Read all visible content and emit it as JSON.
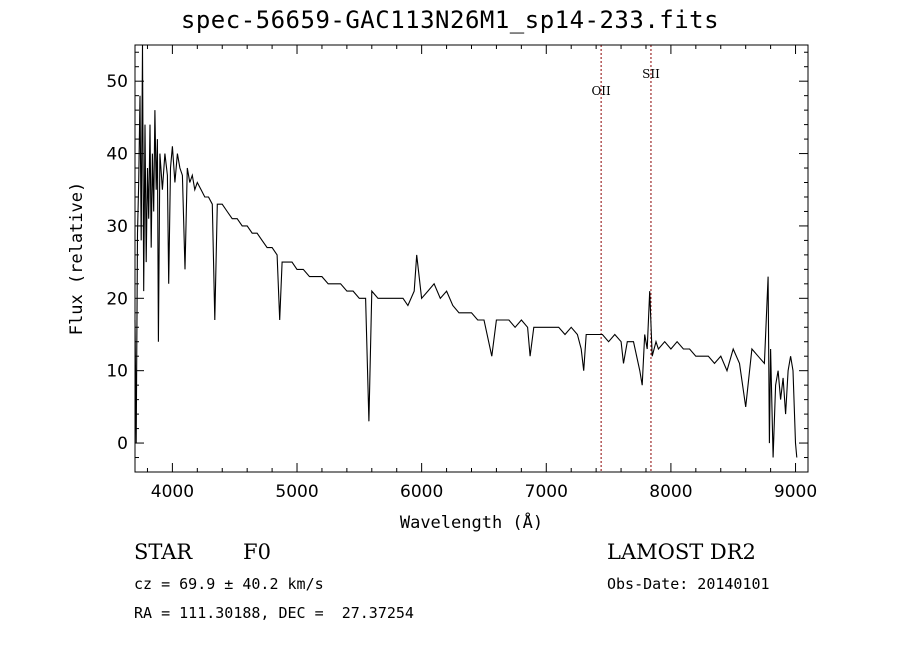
{
  "chart_data": {
    "type": "line",
    "title": "spec-56659-GAC113N26M1_sp14-233.fits",
    "xlabel": "Wavelength (Å)",
    "ylabel": "Flux (relative)",
    "xlim": [
      3700,
      9100
    ],
    "ylim": [
      -4,
      55
    ],
    "xticks": [
      4000,
      5000,
      6000,
      7000,
      8000,
      9000
    ],
    "yticks": [
      0,
      10,
      20,
      30,
      40,
      50
    ],
    "grid": false,
    "line_color": "#000000",
    "marker_color": "#8b0000",
    "reference_lines": [
      {
        "label": "OII",
        "x": 7440
      },
      {
        "label": "SII",
        "x": 7840
      }
    ],
    "series": [
      {
        "values": [
          [
            3700,
            17
          ],
          [
            3710,
            0
          ],
          [
            3720,
            29
          ],
          [
            3730,
            36
          ],
          [
            3740,
            48
          ],
          [
            3750,
            28
          ],
          [
            3760,
            56
          ],
          [
            3770,
            21
          ],
          [
            3780,
            44
          ],
          [
            3790,
            25
          ],
          [
            3800,
            38
          ],
          [
            3810,
            31
          ],
          [
            3820,
            44
          ],
          [
            3830,
            27
          ],
          [
            3840,
            40
          ],
          [
            3850,
            32
          ],
          [
            3860,
            46
          ],
          [
            3870,
            35
          ],
          [
            3880,
            42
          ],
          [
            3888,
            14
          ],
          [
            3900,
            40
          ],
          [
            3920,
            35
          ],
          [
            3940,
            40
          ],
          [
            3960,
            37
          ],
          [
            3970,
            22
          ],
          [
            3985,
            38
          ],
          [
            4000,
            41
          ],
          [
            4020,
            36
          ],
          [
            4040,
            40
          ],
          [
            4060,
            38
          ],
          [
            4080,
            37
          ],
          [
            4101,
            24
          ],
          [
            4120,
            38
          ],
          [
            4140,
            36
          ],
          [
            4160,
            37
          ],
          [
            4180,
            35
          ],
          [
            4200,
            36
          ],
          [
            4230,
            35
          ],
          [
            4260,
            34
          ],
          [
            4290,
            34
          ],
          [
            4320,
            33
          ],
          [
            4340,
            17
          ],
          [
            4360,
            33
          ],
          [
            4400,
            33
          ],
          [
            4440,
            32
          ],
          [
            4480,
            31
          ],
          [
            4520,
            31
          ],
          [
            4560,
            30
          ],
          [
            4600,
            30
          ],
          [
            4640,
            29
          ],
          [
            4680,
            29
          ],
          [
            4720,
            28
          ],
          [
            4760,
            27
          ],
          [
            4800,
            27
          ],
          [
            4840,
            26
          ],
          [
            4861,
            17
          ],
          [
            4880,
            25
          ],
          [
            4920,
            25
          ],
          [
            4960,
            25
          ],
          [
            5000,
            24
          ],
          [
            5050,
            24
          ],
          [
            5100,
            23
          ],
          [
            5150,
            23
          ],
          [
            5200,
            23
          ],
          [
            5250,
            22
          ],
          [
            5300,
            22
          ],
          [
            5350,
            22
          ],
          [
            5400,
            21
          ],
          [
            5450,
            21
          ],
          [
            5500,
            20
          ],
          [
            5550,
            20
          ],
          [
            5577,
            3
          ],
          [
            5600,
            21
          ],
          [
            5650,
            20
          ],
          [
            5700,
            20
          ],
          [
            5750,
            20
          ],
          [
            5800,
            20
          ],
          [
            5850,
            20
          ],
          [
            5890,
            19
          ],
          [
            5940,
            21
          ],
          [
            5960,
            26
          ],
          [
            6000,
            20
          ],
          [
            6050,
            21
          ],
          [
            6100,
            22
          ],
          [
            6150,
            20
          ],
          [
            6200,
            21
          ],
          [
            6250,
            19
          ],
          [
            6300,
            18
          ],
          [
            6350,
            18
          ],
          [
            6400,
            18
          ],
          [
            6450,
            17
          ],
          [
            6500,
            17
          ],
          [
            6563,
            12
          ],
          [
            6600,
            17
          ],
          [
            6650,
            17
          ],
          [
            6700,
            17
          ],
          [
            6750,
            16
          ],
          [
            6800,
            17
          ],
          [
            6850,
            16
          ],
          [
            6870,
            12
          ],
          [
            6900,
            16
          ],
          [
            6950,
            16
          ],
          [
            7000,
            16
          ],
          [
            7050,
            16
          ],
          [
            7100,
            16
          ],
          [
            7150,
            15
          ],
          [
            7200,
            16
          ],
          [
            7250,
            15
          ],
          [
            7280,
            13
          ],
          [
            7300,
            10
          ],
          [
            7320,
            15
          ],
          [
            7350,
            15
          ],
          [
            7400,
            15
          ],
          [
            7450,
            15
          ],
          [
            7500,
            14
          ],
          [
            7550,
            15
          ],
          [
            7600,
            14
          ],
          [
            7620,
            11
          ],
          [
            7650,
            14
          ],
          [
            7700,
            14
          ],
          [
            7750,
            10
          ],
          [
            7770,
            8
          ],
          [
            7790,
            15
          ],
          [
            7810,
            13
          ],
          [
            7830,
            21
          ],
          [
            7850,
            12
          ],
          [
            7880,
            14
          ],
          [
            7900,
            13
          ],
          [
            7950,
            14
          ],
          [
            8000,
            13
          ],
          [
            8050,
            14
          ],
          [
            8100,
            13
          ],
          [
            8150,
            13
          ],
          [
            8200,
            12
          ],
          [
            8250,
            12
          ],
          [
            8300,
            12
          ],
          [
            8350,
            11
          ],
          [
            8400,
            12
          ],
          [
            8450,
            10
          ],
          [
            8500,
            13
          ],
          [
            8550,
            11
          ],
          [
            8600,
            5
          ],
          [
            8650,
            13
          ],
          [
            8700,
            12
          ],
          [
            8750,
            11
          ],
          [
            8780,
            23
          ],
          [
            8790,
            0
          ],
          [
            8800,
            13
          ],
          [
            8820,
            -2
          ],
          [
            8840,
            8
          ],
          [
            8860,
            10
          ],
          [
            8880,
            6
          ],
          [
            8900,
            9
          ],
          [
            8920,
            4
          ],
          [
            8940,
            10
          ],
          [
            8960,
            12
          ],
          [
            8980,
            10
          ],
          [
            9000,
            0
          ],
          [
            9010,
            -2
          ]
        ]
      }
    ]
  },
  "footer": {
    "object_class": "STAR",
    "subclass": "F0",
    "cz": "cz = 69.9 ± 40.2 km/s",
    "coords": "RA = 111.30188, DEC =  27.37254",
    "survey": "LAMOST DR2",
    "obs_date": "Obs-Date: 20140101"
  }
}
